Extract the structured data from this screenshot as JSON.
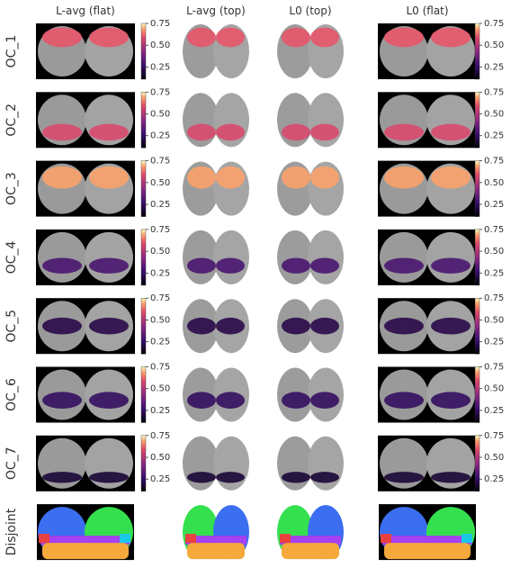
{
  "columns": [
    "L-avg (flat)",
    "L-avg (top)",
    "L0 (top)",
    "L0 (flat)"
  ],
  "rows": [
    "OC_1",
    "OC_2",
    "OC_3",
    "OC_4",
    "OC_5",
    "OC_6",
    "OC_7",
    "Disjoint"
  ],
  "colorbar": {
    "lim": [
      0.11,
      0.75
    ],
    "ticks": [
      {
        "value": 0.25,
        "label": "0.25"
      },
      {
        "value": 0.5,
        "label": "0.50"
      },
      {
        "value": 0.75,
        "label": "0.75"
      }
    ]
  }
}
